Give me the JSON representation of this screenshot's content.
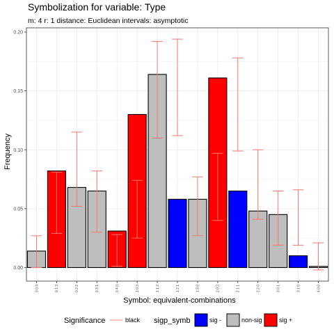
{
  "chart_data": {
    "type": "bar",
    "title": "Symbolization for variable: Type",
    "subtitle": "m: 4  r:  1  distance:  Euclidean  intervals:  asymptotic",
    "xlabel": "Symbol: equivalent-combinations",
    "ylabel": "Frequency",
    "ylim": [
      0,
      0.205
    ],
    "yticks": [
      0.0,
      0.05,
      0.1,
      0.15,
      0.2
    ],
    "ytick_labels": [
      "0.00",
      "0.05",
      "0.10",
      "0.15",
      "0.20"
    ],
    "grid": true,
    "categories": [
      "0 0 4",
      "0 1 3",
      "0 2 2",
      "0 3 1",
      "0 4 0",
      "1 0 3",
      "1 1 2",
      "1 2 1",
      "1 3 0",
      "2 0 2",
      "2 1 1",
      "2 2 0",
      "3 0 1",
      "3 1 0",
      "4 0 0"
    ],
    "values": [
      0.014,
      0.082,
      0.068,
      0.065,
      0.031,
      0.13,
      0.164,
      0.058,
      0.058,
      0.161,
      0.065,
      0.048,
      0.045,
      0.01,
      0.001
    ],
    "significance": [
      "non-sig",
      "sig +",
      "non-sig",
      "non-sig",
      "sig +",
      "sig +",
      "non-sig",
      "sig -",
      "non-sig",
      "sig +",
      "sig -",
      "non-sig",
      "non-sig",
      "sig -",
      "non-sig"
    ],
    "interval_low": [
      0.0,
      0.029,
      0.052,
      0.03,
      0.001,
      0.025,
      0.11,
      0.112,
      0.027,
      0.04,
      0.099,
      0.041,
      0.019,
      0.019,
      -0.002
    ],
    "interval_high": [
      0.027,
      0.081,
      0.115,
      0.082,
      0.028,
      0.074,
      0.192,
      0.194,
      0.077,
      0.097,
      0.178,
      0.1,
      0.065,
      0.066,
      0.021
    ],
    "colors": {
      "sig -": "#0000ff",
      "non-sig": "#bebebe",
      "sig +": "#ff0000",
      "interval": "#f8766d",
      "grid": "#ebebeb",
      "panel_border": "#333333"
    },
    "legend": {
      "position": "bottom",
      "significance_title": "Significance",
      "significance_label": "black",
      "fill_title": "sigp_symb",
      "fill_labels": [
        "sig -",
        "non-sig",
        "sig +"
      ]
    }
  }
}
